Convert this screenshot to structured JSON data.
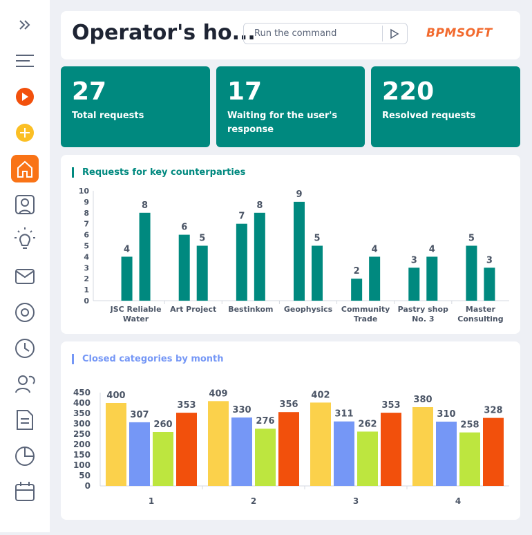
{
  "header": {
    "title": "Operator's ho...",
    "command_placeholder": "Run the command",
    "logo": "BPMSOFT"
  },
  "kpis": [
    {
      "value": 27,
      "label": "Total requests"
    },
    {
      "value": 17,
      "label": "Waiting for the user's response"
    },
    {
      "value": 220,
      "label": "Resolved requests"
    }
  ],
  "chart_data": [
    {
      "type": "bar",
      "title": "Requests for key counterparties",
      "categories": [
        "JSC Reliable Water",
        "Art Project",
        "Bestinkom",
        "Geophysics",
        "Community Trade",
        "Pastry shop No. 3",
        "Master Consulting"
      ],
      "series": [
        {
          "color": "#00897f",
          "values": [
            4,
            6,
            7,
            9,
            2,
            3,
            5
          ]
        },
        {
          "color": "#00897f",
          "values": [
            8,
            5,
            8,
            5,
            4,
            4,
            3
          ]
        }
      ],
      "ylim": [
        0,
        10
      ],
      "yticks": [
        0,
        1,
        2,
        3,
        4,
        5,
        6,
        7,
        8,
        9,
        10
      ],
      "grid": false,
      "title_color": "#00897f"
    },
    {
      "type": "bar",
      "title": "Closed categories by month",
      "categories": [
        "1",
        "2",
        "3",
        "4"
      ],
      "series": [
        {
          "color": "#fbd14b",
          "values": [
            400,
            409,
            402,
            380
          ]
        },
        {
          "color": "#7597f6",
          "values": [
            307,
            330,
            311,
            310
          ]
        },
        {
          "color": "#bde63f",
          "values": [
            260,
            276,
            262,
            258
          ]
        },
        {
          "color": "#f2500c",
          "values": [
            353,
            356,
            353,
            328
          ]
        }
      ],
      "ylim": [
        0,
        450
      ],
      "yticks": [
        0,
        50,
        100,
        150,
        200,
        250,
        300,
        350,
        400,
        450
      ],
      "grid": false,
      "title_color": "#7597f6"
    }
  ]
}
